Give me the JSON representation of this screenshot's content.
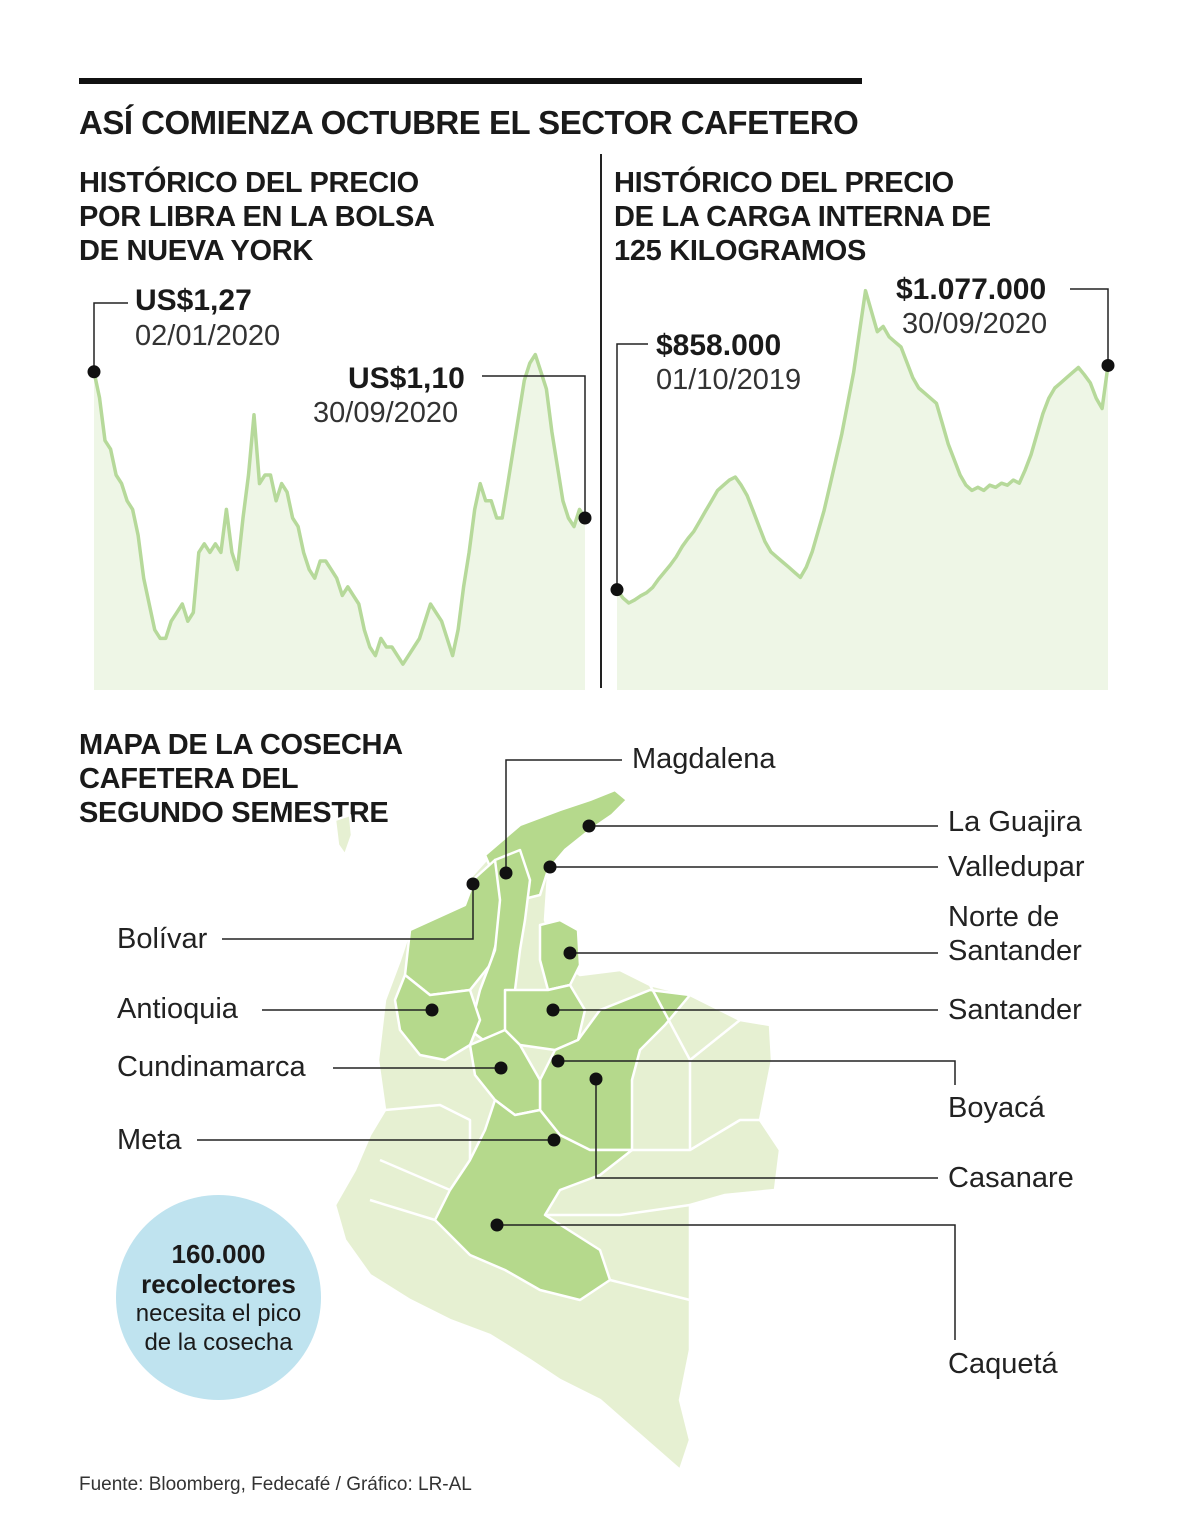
{
  "title": "ASÍ COMIENZA OCTUBRE EL SECTOR CAFETERO",
  "colors": {
    "line": "#b6d99a",
    "fill": "#eef6e6",
    "region_highlight": "#b5d98c",
    "region_light": "#e6f0d2",
    "region_border": "#ffffff",
    "bubble": "#bfe3ef"
  },
  "chart_data": [
    {
      "type": "area",
      "title": "HISTÓRICO DEL PRECIO\nPOR LIBRA EN LA BOLSA\nDE NUEVA YORK",
      "xlabel": "",
      "ylabel": "",
      "grid": false,
      "x_range": [
        "02/01/2020",
        "30/09/2020"
      ],
      "ylim": [
        0.9,
        1.4
      ],
      "start": {
        "x": "02/01/2020",
        "y": 1.27,
        "label": "US$1,27",
        "date": "02/01/2020"
      },
      "end": {
        "x": "30/09/2020",
        "y": 1.1,
        "label": "US$1,10",
        "date": "30/09/2020"
      },
      "series": [
        {
          "values": [
            1.27,
            1.24,
            1.19,
            1.18,
            1.15,
            1.14,
            1.12,
            1.11,
            1.08,
            1.03,
            1.0,
            0.97,
            0.96,
            0.96,
            0.98,
            0.99,
            1.0,
            0.98,
            0.99,
            1.06,
            1.07,
            1.06,
            1.07,
            1.06,
            1.11,
            1.06,
            1.04,
            1.1,
            1.15,
            1.22,
            1.14,
            1.15,
            1.15,
            1.12,
            1.14,
            1.13,
            1.1,
            1.09,
            1.06,
            1.04,
            1.03,
            1.05,
            1.05,
            1.04,
            1.03,
            1.01,
            1.02,
            1.01,
            1.0,
            0.97,
            0.95,
            0.94,
            0.96,
            0.95,
            0.95,
            0.94,
            0.93,
            0.94,
            0.95,
            0.96,
            0.98,
            1.0,
            0.99,
            0.98,
            0.96,
            0.94,
            0.97,
            1.02,
            1.06,
            1.11,
            1.14,
            1.12,
            1.12,
            1.1,
            1.1,
            1.14,
            1.18,
            1.22,
            1.26,
            1.28,
            1.29,
            1.27,
            1.25,
            1.2,
            1.16,
            1.12,
            1.1,
            1.09,
            1.11,
            1.1
          ]
        }
      ]
    },
    {
      "type": "area",
      "title": "HISTÓRICO DEL PRECIO\nDE LA CARGA INTERNA DE\n125 KILOGRAMOS",
      "xlabel": "",
      "ylabel": "",
      "grid": false,
      "x_range": [
        "01/10/2019",
        "30/09/2020"
      ],
      "ylim": [
        760000,
        1180000
      ],
      "start": {
        "x": "01/10/2019",
        "y": 858000,
        "label": "$858.000",
        "date": "01/10/2019"
      },
      "end": {
        "x": "30/09/2020",
        "y": 1077000,
        "label": "$1.077.000",
        "date": "30/09/2020"
      },
      "series": [
        {
          "values": [
            858000,
            850000,
            845000,
            848000,
            852000,
            855000,
            860000,
            868000,
            875000,
            882000,
            890000,
            900000,
            908000,
            915000,
            925000,
            935000,
            945000,
            955000,
            960000,
            965000,
            968000,
            960000,
            950000,
            935000,
            920000,
            905000,
            895000,
            890000,
            885000,
            880000,
            875000,
            870000,
            880000,
            895000,
            915000,
            935000,
            960000,
            985000,
            1010000,
            1040000,
            1070000,
            1110000,
            1150000,
            1130000,
            1110000,
            1115000,
            1105000,
            1100000,
            1095000,
            1080000,
            1065000,
            1055000,
            1050000,
            1045000,
            1040000,
            1020000,
            1000000,
            985000,
            970000,
            960000,
            955000,
            958000,
            955000,
            960000,
            958000,
            962000,
            960000,
            965000,
            962000,
            975000,
            990000,
            1010000,
            1030000,
            1045000,
            1055000,
            1060000,
            1065000,
            1070000,
            1075000,
            1068000,
            1060000,
            1045000,
            1035000,
            1077000
          ]
        }
      ]
    }
  ],
  "map": {
    "title": "MAPA DE LA COSECHA\nCAFETERA DEL\nSEGUNDO SEMESTRE",
    "regions": [
      {
        "label": "Magdalena"
      },
      {
        "label": "La Guajira"
      },
      {
        "label": "Valledupar"
      },
      {
        "label": "Norte de\nSantander"
      },
      {
        "label": "Santander"
      },
      {
        "label": "Boyacá"
      },
      {
        "label": "Casanare"
      },
      {
        "label": "Caquetá"
      },
      {
        "label": "Bolívar"
      },
      {
        "label": "Antioquia"
      },
      {
        "label": "Cundinamarca"
      },
      {
        "label": "Meta"
      }
    ]
  },
  "bubble": {
    "number": "160.000",
    "bold": "recolectores",
    "rest": "necesita el pico\nde la cosecha"
  },
  "source": "Fuente: Bloomberg, Fedecafé / Gráfico: LR-AL"
}
